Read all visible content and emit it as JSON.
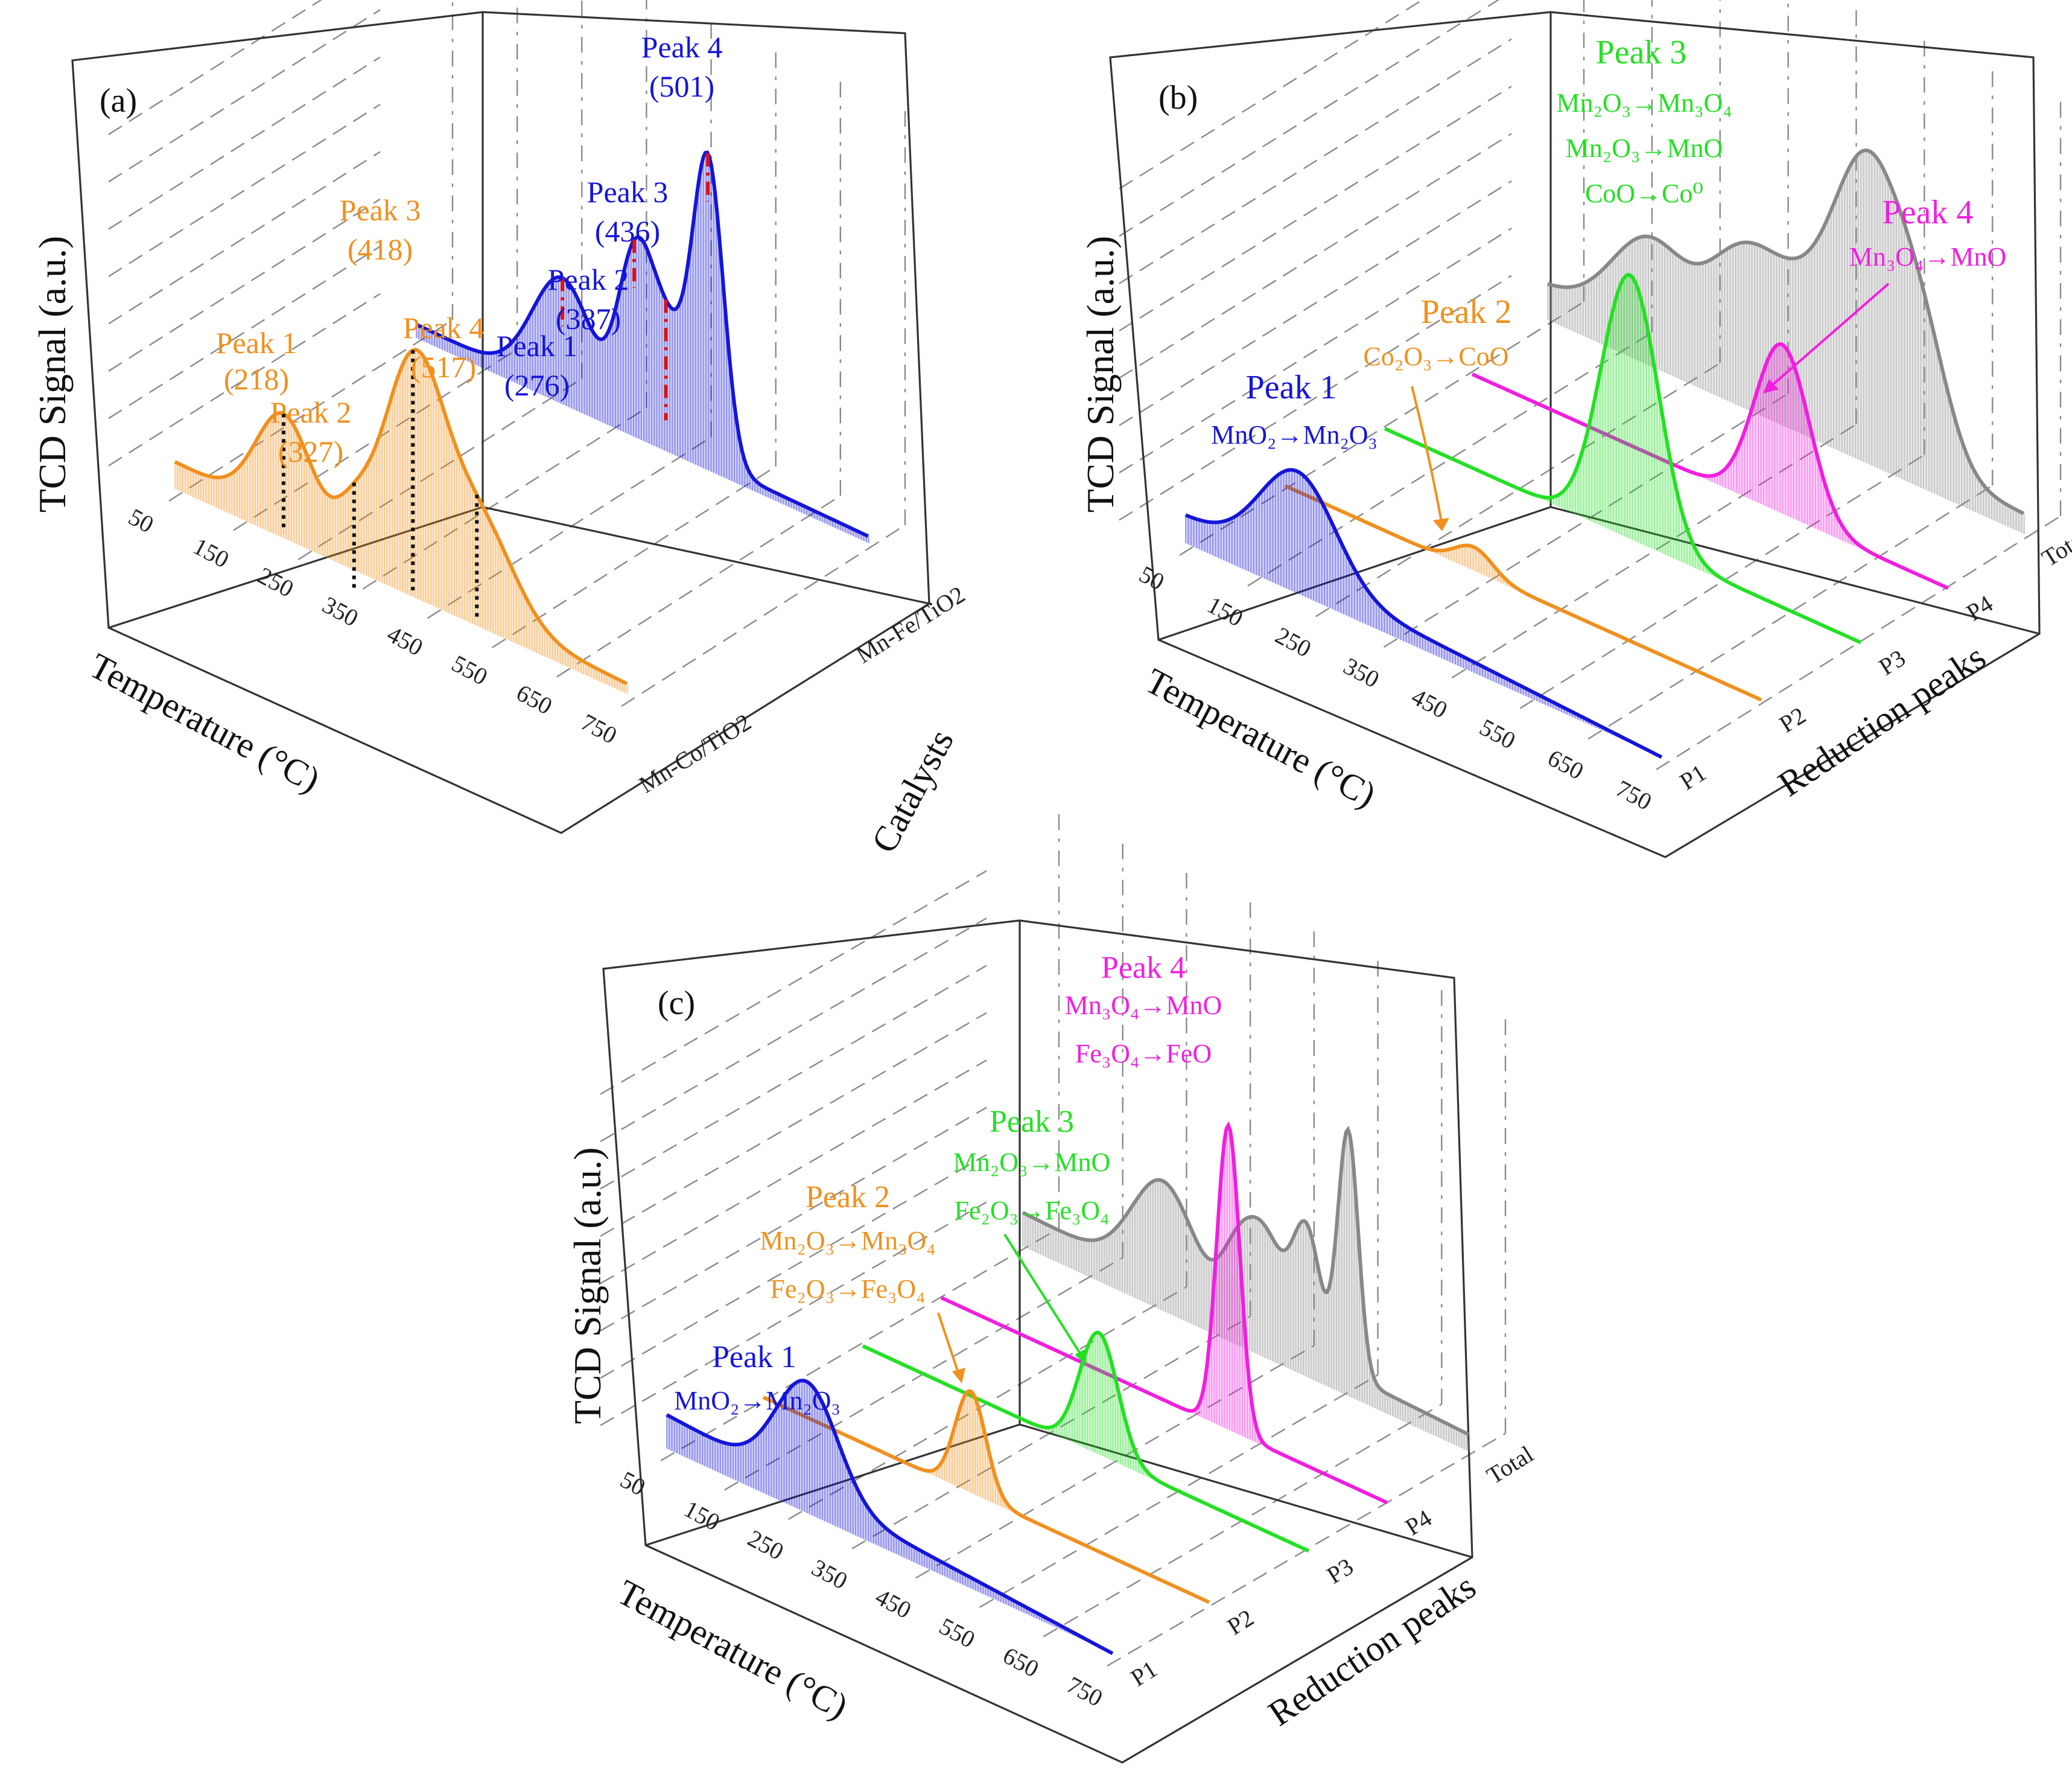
{
  "figure": {
    "y_axis_label": "TCD Signal (a.u.)",
    "temperature_axis_label": "Temperature (°C)",
    "temperature_ticks": [
      "50",
      "150",
      "250",
      "350",
      "450",
      "550",
      "650",
      "750"
    ]
  },
  "colors": {
    "orange": "#F0901E",
    "blue": "#1515D8",
    "green": "#24E024",
    "magenta": "#F01EE0",
    "gray": "#888888",
    "black": "#111111",
    "red": "#E01010"
  },
  "panels": {
    "a": {
      "label": "(a)",
      "depth_axis_label": "Catalysts",
      "depth_ticks": [
        "Mn-Co/TiO2",
        "Mn-Fe/TiO2"
      ],
      "series": {
        "mnco": {
          "peaks": [
            {
              "name": "Peak 1",
              "temp": "(218)"
            },
            {
              "name": "Peak 2",
              "temp": "(327)"
            },
            {
              "name": "Peak 3",
              "temp": "(418)"
            },
            {
              "name": "Peak 4",
              "temp": "(517)"
            }
          ]
        },
        "mnfe": {
          "peaks": [
            {
              "name": "Peak 1",
              "temp": "(276)"
            },
            {
              "name": "Peak 2",
              "temp": "(387)"
            },
            {
              "name": "Peak 3",
              "temp": "(436)"
            },
            {
              "name": "Peak 4",
              "temp": "(501)"
            }
          ]
        }
      }
    },
    "b": {
      "label": "(b)",
      "depth_axis_label": "Reduction peaks",
      "depth_ticks": [
        "P1",
        "P2",
        "P3",
        "P4",
        "Total"
      ],
      "peaks": [
        {
          "title": "Peak 1",
          "reactions": [
            "MnO₂→Mn₂O₃"
          ]
        },
        {
          "title": "Peak 2",
          "reactions": [
            "Co₂O₃→CoO"
          ]
        },
        {
          "title": "Peak 3",
          "reactions": [
            "Mn₂O₃→Mn₃O₄",
            "Mn₂O₃→MnO",
            "CoO→Co⁰"
          ]
        },
        {
          "title": "Peak 4",
          "reactions": [
            "Mn₃O₄→MnO"
          ]
        }
      ]
    },
    "c": {
      "label": "(c)",
      "depth_axis_label": "Reduction peaks",
      "depth_ticks": [
        "P1",
        "P2",
        "P3",
        "P4",
        "Total"
      ],
      "peaks": [
        {
          "title": "Peak 1",
          "reactions": [
            "MnO₂→Mn₂O₃"
          ]
        },
        {
          "title": "Peak 2",
          "reactions": [
            "Mn₂O₃→Mn₃O₄",
            "Fe₂O₃→Fe₃O₄"
          ]
        },
        {
          "title": "Peak 3",
          "reactions": [
            "Mn₂O₃→MnO",
            "Fe₂O₃→Fe₃O₄"
          ]
        },
        {
          "title": "Peak 4",
          "reactions": [
            "Mn₃O₄→MnO",
            "Fe₃O₄→FeO"
          ]
        }
      ]
    }
  },
  "chart_data": [
    {
      "type": "line",
      "panel": "(a)",
      "title": "",
      "xlabel": "Temperature (°C)",
      "ylabel": "TCD Signal (a.u.)",
      "zlabel": "Catalysts",
      "xlim": [
        50,
        750
      ],
      "x_ticks": [
        50,
        150,
        250,
        350,
        450,
        550,
        650,
        750
      ],
      "series": [
        {
          "name": "Mn-Co/TiO2",
          "color": "#F0901E",
          "components": [
            {
              "center": 218,
              "height": 0.3,
              "width": 42
            },
            {
              "center": 327,
              "height": 0.1,
              "width": 28
            },
            {
              "center": 418,
              "height": 0.62,
              "width": 46
            },
            {
              "center": 517,
              "height": 0.28,
              "width": 55
            }
          ],
          "baseline_start": 0.08,
          "baseline_end": 0.03,
          "peak_labels": [
            "218",
            "327",
            "418",
            "517"
          ]
        },
        {
          "name": "Mn-Fe/TiO2",
          "color": "#1515D8",
          "components": [
            {
              "center": 276,
              "height": 0.34,
              "width": 46
            },
            {
              "center": 387,
              "height": 0.45,
              "width": 26
            },
            {
              "center": 436,
              "height": 0.32,
              "width": 30
            },
            {
              "center": 501,
              "height": 0.88,
              "width": 24
            }
          ],
          "baseline_start": 0.04,
          "baseline_end": 0.02,
          "peak_labels": [
            "276",
            "387",
            "436",
            "501"
          ]
        }
      ]
    },
    {
      "type": "line",
      "panel": "(b)",
      "title": "",
      "xlabel": "Temperature (°C)",
      "ylabel": "TCD Signal (a.u.)",
      "zlabel": "Reduction peaks",
      "xlim": [
        50,
        750
      ],
      "x_ticks": [
        50,
        150,
        250,
        350,
        450,
        550,
        650,
        750
      ],
      "series": [
        {
          "name": "P1",
          "color": "#1515D8",
          "components": [
            {
              "center": 215,
              "height": 0.3,
              "width": 55
            }
          ],
          "baseline_start": 0.08,
          "baseline_end": 0.0
        },
        {
          "name": "P2",
          "color": "#F0901E",
          "components": [
            {
              "center": 327,
              "height": 0.07,
              "width": 28
            }
          ],
          "baseline_start": 0.0,
          "baseline_end": 0.0
        },
        {
          "name": "P3",
          "color": "#24E024",
          "components": [
            {
              "center": 410,
              "height": 0.78,
              "width": 42
            }
          ],
          "baseline_start": 0.0,
          "baseline_end": 0.0
        },
        {
          "name": "P4",
          "color": "#F01EE0",
          "components": [
            {
              "center": 505,
              "height": 0.5,
              "width": 40
            }
          ],
          "baseline_start": 0.0,
          "baseline_end": 0.0
        },
        {
          "name": "Total",
          "color": "#888888",
          "components": [
            {
              "center": 200,
              "height": 0.28,
              "width": 55
            },
            {
              "center": 330,
              "height": 0.3,
              "width": 50
            },
            {
              "center": 418,
              "height": 0.28,
              "width": 55
            },
            {
              "center": 520,
              "height": 0.76,
              "width": 50
            },
            {
              "center": 600,
              "height": 0.32,
              "width": 40
            }
          ],
          "baseline_start": 0.1,
          "baseline_end": 0.06
        }
      ]
    },
    {
      "type": "line",
      "panel": "(c)",
      "title": "",
      "xlabel": "Temperature (°C)",
      "ylabel": "TCD Signal (a.u.)",
      "zlabel": "Reduction peaks",
      "xlim": [
        50,
        750
      ],
      "x_ticks": [
        50,
        150,
        250,
        350,
        450,
        550,
        650,
        750
      ],
      "series": [
        {
          "name": "P1",
          "color": "#1515D8",
          "components": [
            {
              "center": 270,
              "height": 0.32,
              "width": 48
            }
          ],
          "baseline_start": 0.1,
          "baseline_end": 0.0
        },
        {
          "name": "P2",
          "color": "#F0901E",
          "components": [
            {
              "center": 375,
              "height": 0.3,
              "width": 24
            }
          ],
          "baseline_start": 0.0,
          "baseline_end": 0.0
        },
        {
          "name": "P3",
          "color": "#24E024",
          "components": [
            {
              "center": 420,
              "height": 0.36,
              "width": 30
            }
          ],
          "baseline_start": 0.0,
          "baseline_end": 0.0
        },
        {
          "name": "P4",
          "color": "#F01EE0",
          "components": [
            {
              "center": 500,
              "height": 0.9,
              "width": 18
            }
          ],
          "baseline_start": 0.0,
          "baseline_end": 0.0
        },
        {
          "name": "Total",
          "color": "#888888",
          "components": [
            {
              "center": 270,
              "height": 0.3,
              "width": 48
            },
            {
              "center": 385,
              "height": 0.16,
              "width": 25
            },
            {
              "center": 430,
              "height": 0.28,
              "width": 30
            },
            {
              "center": 495,
              "height": 0.36,
              "width": 22
            },
            {
              "center": 560,
              "height": 0.72,
              "width": 16
            }
          ],
          "baseline_start": 0.1,
          "baseline_end": 0.05
        }
      ]
    }
  ]
}
